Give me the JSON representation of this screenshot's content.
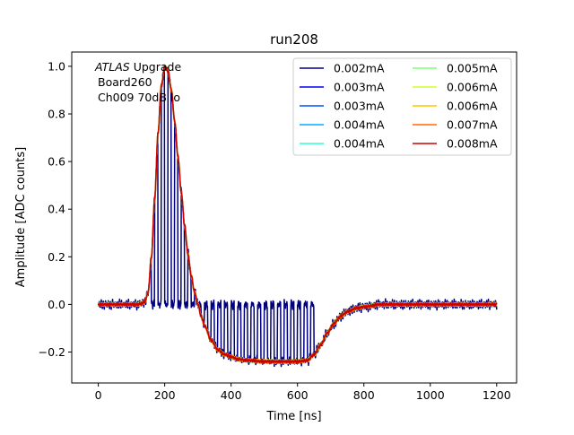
{
  "chart_data": {
    "type": "line",
    "title": "run208",
    "xlabel": "Time [ns]",
    "ylabel": "Amplitude [ADC counts]",
    "xlim": [
      -80,
      1260
    ],
    "ylim": [
      -0.33,
      1.06
    ],
    "xticks": [
      0,
      200,
      400,
      600,
      800,
      1000,
      1200
    ],
    "xtick_labels": [
      "0",
      "200",
      "400",
      "600",
      "800",
      "1000",
      "1200"
    ],
    "yticks": [
      -0.2,
      0.0,
      0.2,
      0.4,
      0.6,
      0.8,
      1.0
    ],
    "ytick_labels": [
      "−0.2",
      "0.0",
      "0.2",
      "0.4",
      "0.6",
      "0.8",
      "1.0"
    ],
    "grid": false,
    "legend": {
      "placement": "top-right",
      "columns": 2
    },
    "annotation": {
      "italic_part": "ATLAS",
      "rest_line1": " Upgrade",
      "line2": "Board260",
      "line3": "Ch009 70dB lo"
    },
    "pulse_shape": {
      "t": [
        0,
        120,
        140,
        150,
        160,
        170,
        180,
        190,
        200,
        210,
        220,
        230,
        240,
        250,
        260,
        270,
        280,
        290,
        300,
        310,
        320,
        340,
        360,
        380,
        400,
        420,
        450,
        500,
        550,
        600,
        630,
        650,
        670,
        690,
        710,
        730,
        750,
        780,
        800,
        850,
        900,
        1000,
        1100,
        1200
      ],
      "y": [
        0.0,
        0.0,
        0.01,
        0.05,
        0.2,
        0.45,
        0.72,
        0.92,
        1.0,
        0.98,
        0.9,
        0.77,
        0.62,
        0.47,
        0.33,
        0.21,
        0.12,
        0.05,
        0.0,
        -0.05,
        -0.09,
        -0.15,
        -0.19,
        -0.21,
        -0.22,
        -0.23,
        -0.235,
        -0.24,
        -0.24,
        -0.24,
        -0.235,
        -0.21,
        -0.17,
        -0.12,
        -0.08,
        -0.05,
        -0.03,
        -0.015,
        -0.01,
        0.0,
        0.0,
        0.0,
        0.0,
        0.0
      ]
    },
    "modulated_series_index": 0,
    "modulation": {
      "period_ns": 20,
      "on_fraction": 0.5,
      "start_ns": 150,
      "end_ns": 650
    },
    "series": [
      {
        "name": "0.002mA",
        "color": "#00007f"
      },
      {
        "name": "0.003mA",
        "color": "#0000f1"
      },
      {
        "name": "0.003mA",
        "color": "#004cff"
      },
      {
        "name": "0.004mA",
        "color": "#00b0ff"
      },
      {
        "name": "0.004mA",
        "color": "#29ffce"
      },
      {
        "name": "0.005mA",
        "color": "#7dff7a"
      },
      {
        "name": "0.006mA",
        "color": "#ceff29"
      },
      {
        "name": "0.006mA",
        "color": "#ffc400"
      },
      {
        "name": "0.007mA",
        "color": "#ff6800"
      },
      {
        "name": "0.008mA",
        "color": "#c90000"
      }
    ]
  }
}
